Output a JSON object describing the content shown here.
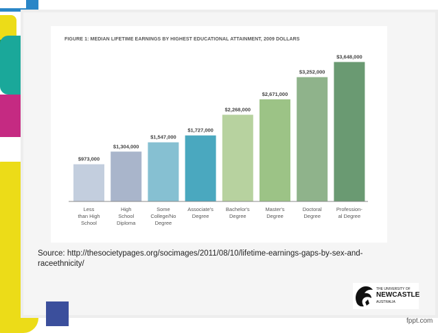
{
  "figure": {
    "title": "FIGURE 1: MEDIAN LIFETIME EARNINGS BY HIGHEST EDUCATIONAL ATTAINMENT, 2009 DOLLARS"
  },
  "chart_data": {
    "type": "bar",
    "title": "FIGURE 1: MEDIAN LIFETIME EARNINGS BY HIGHEST EDUCATIONAL ATTAINMENT, 2009 DOLLARS",
    "categories": [
      [
        "Less",
        "than High",
        "School"
      ],
      [
        "High",
        "School",
        "Diploma"
      ],
      [
        "Some",
        "College/No",
        "Degree"
      ],
      [
        "Associate's",
        "Degree"
      ],
      [
        "Bachelor's",
        "Degree"
      ],
      [
        "Master's",
        "Degree"
      ],
      [
        "Doctoral",
        "Degree"
      ],
      [
        "Profession-",
        "al Degree"
      ]
    ],
    "values": [
      973000,
      1304000,
      1547000,
      1727000,
      2268000,
      2671000,
      3252000,
      3648000
    ],
    "value_labels": [
      "$973,000",
      "$1,304,000",
      "$1,547,000",
      "$1,727,000",
      "$2,268,000",
      "$2,671,000",
      "$3,252,000",
      "$3,648,000"
    ],
    "colors": [
      "#c3cede",
      "#a9b5cb",
      "#86c0d2",
      "#4aa8bf",
      "#b7d29f",
      "#9cc386",
      "#8fb38b",
      "#6a9a72"
    ],
    "ylim": [
      0,
      3800000
    ],
    "grid": false,
    "xlabel": "",
    "ylabel": ""
  },
  "source": {
    "text": "Source: http://thesocietypages.org/socimages/2011/08/10/lifetime-earnings-gaps-by-sex-and-raceethnicity/"
  },
  "logo": {
    "line1": "THE UNIVERSITY OF",
    "line2": "NEWCASTLE",
    "line3": "AUSTRALIA"
  },
  "watermark": {
    "text": "fppt.com"
  },
  "colors": {
    "blue_accent": "#2a86c7",
    "green_accent": "#2e9a3d",
    "teal_accent": "#1aa89a",
    "magenta_accent": "#c52a82",
    "yellow_accent": "#ecdc18",
    "navy_accent": "#3b4f9c"
  }
}
